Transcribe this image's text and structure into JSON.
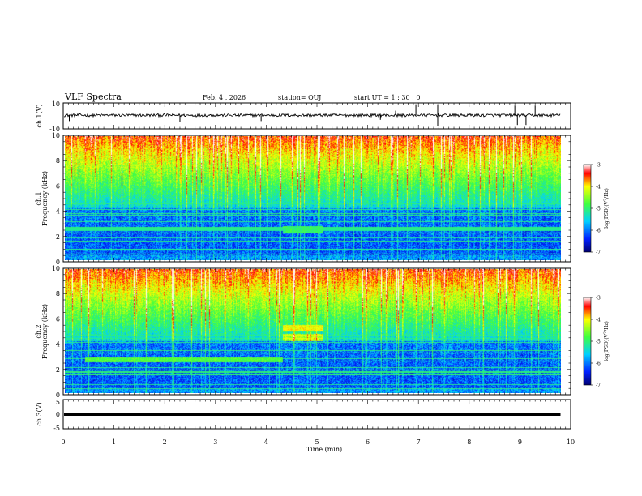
{
  "header": {
    "title": "VLF Spectra",
    "date": "Feb. 4 , 2026",
    "station": "station= OUJ",
    "start_ut": "start  UT =   1 : 30 : 0"
  },
  "chart_data": [
    {
      "type": "line",
      "name": "ch1-waveform",
      "ylabel": "ch.1(V)",
      "ylim": [
        -10,
        10
      ],
      "yticks": [
        "10",
        "-10"
      ],
      "x_range_min": [
        0,
        9.8
      ],
      "baseline_v": 0.5,
      "spikes": [
        {
          "t": 0.12,
          "v": -4
        },
        {
          "t": 2.3,
          "v": -5
        },
        {
          "t": 3.9,
          "v": -4
        },
        {
          "t": 6.25,
          "v": -3
        },
        {
          "t": 6.55,
          "v": 4
        },
        {
          "t": 6.95,
          "v": 9
        },
        {
          "t": 7.38,
          "v": 9
        },
        {
          "t": 7.38,
          "v": -8
        },
        {
          "t": 8.9,
          "v": 8
        },
        {
          "t": 8.95,
          "v": -7
        },
        {
          "t": 9.12,
          "v": -7
        },
        {
          "t": 9.3,
          "v": 8
        }
      ]
    },
    {
      "type": "heatmap",
      "name": "ch1-spectrogram",
      "ylabel": "ch.1\nFrequency (kHz)",
      "ylim": [
        0,
        10
      ],
      "yticks": [
        "0",
        "2",
        "4",
        "6",
        "8",
        "10"
      ],
      "x_range_min": [
        0,
        9.8
      ],
      "colorbar": {
        "label": "log(PSD)(V²/Hz)",
        "range": [
          -7,
          -3
        ],
        "ticks": [
          "-3",
          "-4",
          "-5",
          "-6",
          "-7"
        ]
      },
      "features": [
        {
          "desc": "step band",
          "t": [
            4.3,
            5.1
          ],
          "f": [
            2.2,
            2.8
          ],
          "value": -5.2
        }
      ]
    },
    {
      "type": "heatmap",
      "name": "ch2-spectrogram",
      "ylabel": "ch.2\nFrequency (kHz)",
      "ylim": [
        0,
        10
      ],
      "yticks": [
        "0",
        "2",
        "4",
        "6",
        "8",
        "10"
      ],
      "x_range_min": [
        0,
        9.8
      ],
      "colorbar": {
        "label": "log(PSD)(V²/Hz)",
        "range": [
          -7,
          -3
        ],
        "ticks": [
          "-3",
          "-4",
          "-5",
          "-6",
          "-7"
        ]
      },
      "features": [
        {
          "desc": "carrier band",
          "t": [
            0.4,
            4.3
          ],
          "f": [
            2.5,
            2.9
          ],
          "value": -5.0
        },
        {
          "desc": "step band",
          "t": [
            4.3,
            5.1
          ],
          "f": [
            5.0,
            5.5
          ],
          "value": -4.3
        }
      ]
    },
    {
      "type": "line",
      "name": "ch3-waveform",
      "ylabel": "ch.3(V)",
      "ylim": [
        -5,
        5
      ],
      "yticks": [
        "5",
        "0",
        "-5"
      ],
      "x_range_min": [
        0,
        9.8
      ],
      "baseline_v": 0.0
    }
  ],
  "x_axis": {
    "label": "Time  (min)",
    "ticks": [
      "0",
      "1",
      "2",
      "3",
      "4",
      "5",
      "6",
      "7",
      "8",
      "9",
      "10"
    ],
    "range": [
      0,
      10
    ]
  }
}
